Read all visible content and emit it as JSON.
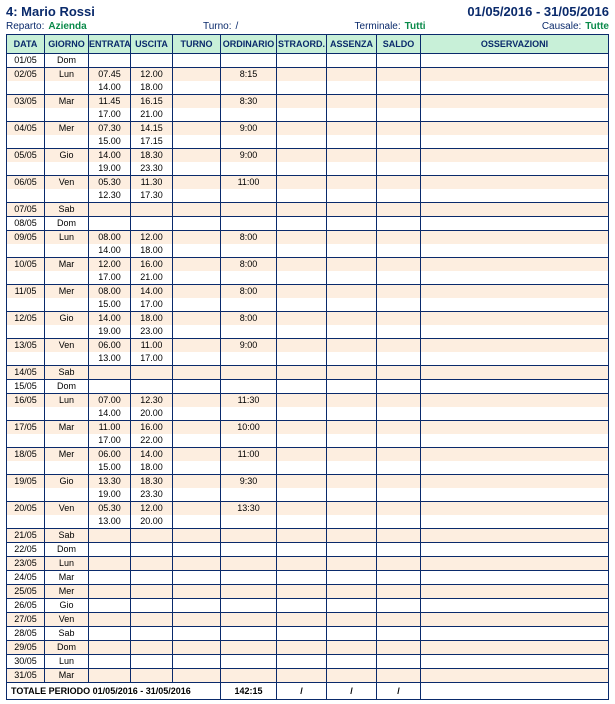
{
  "header": {
    "title_left": "4: Mario Rossi",
    "title_right": "01/05/2016 - 31/05/2016",
    "reparto_lbl": "Reparto:",
    "reparto_val": "Azienda",
    "turno_lbl": "Turno:",
    "turno_val": "/",
    "terminale_lbl": "Terminale:",
    "terminale_val": "Tutti",
    "causale_lbl": "Causale:",
    "causale_val": "Tutte"
  },
  "columns": {
    "data": "DATA",
    "giorno": "GIORNO",
    "entrata": "ENTRATA",
    "uscita": "USCITA",
    "turno": "TURNO",
    "ordinario": "ORDINARIO",
    "straord": "STRAORD.",
    "assenza": "ASSENZA",
    "saldo": "SALDO",
    "osserv": "OSSERVAZIONI"
  },
  "rows": [
    {
      "d": "01/05",
      "g": "Dom",
      "e": [],
      "u": [],
      "ord": ""
    },
    {
      "d": "02/05",
      "g": "Lun",
      "e": [
        "07.45",
        "14.00"
      ],
      "u": [
        "12.00",
        "18.00"
      ],
      "ord": "8:15"
    },
    {
      "d": "03/05",
      "g": "Mar",
      "e": [
        "11.45",
        "17.00"
      ],
      "u": [
        "16.15",
        "21.00"
      ],
      "ord": "8:30"
    },
    {
      "d": "04/05",
      "g": "Mer",
      "e": [
        "07.30",
        "15.00"
      ],
      "u": [
        "14.15",
        "17.15"
      ],
      "ord": "9:00"
    },
    {
      "d": "05/05",
      "g": "Gio",
      "e": [
        "14.00",
        "19.00"
      ],
      "u": [
        "18.30",
        "23.30"
      ],
      "ord": "9:00"
    },
    {
      "d": "06/05",
      "g": "Ven",
      "e": [
        "05.30",
        "12.30"
      ],
      "u": [
        "11.30",
        "17.30"
      ],
      "ord": "11:00"
    },
    {
      "d": "07/05",
      "g": "Sab",
      "e": [],
      "u": [],
      "ord": ""
    },
    {
      "d": "08/05",
      "g": "Dom",
      "e": [],
      "u": [],
      "ord": ""
    },
    {
      "d": "09/05",
      "g": "Lun",
      "e": [
        "08.00",
        "14.00"
      ],
      "u": [
        "12.00",
        "18.00"
      ],
      "ord": "8:00"
    },
    {
      "d": "10/05",
      "g": "Mar",
      "e": [
        "12.00",
        "17.00"
      ],
      "u": [
        "16.00",
        "21.00"
      ],
      "ord": "8:00"
    },
    {
      "d": "11/05",
      "g": "Mer",
      "e": [
        "08.00",
        "15.00"
      ],
      "u": [
        "14.00",
        "17.00"
      ],
      "ord": "8:00"
    },
    {
      "d": "12/05",
      "g": "Gio",
      "e": [
        "14.00",
        "19.00"
      ],
      "u": [
        "18.00",
        "23.00"
      ],
      "ord": "8:00"
    },
    {
      "d": "13/05",
      "g": "Ven",
      "e": [
        "06.00",
        "13.00"
      ],
      "u": [
        "11.00",
        "17.00"
      ],
      "ord": "9:00"
    },
    {
      "d": "14/05",
      "g": "Sab",
      "e": [],
      "u": [],
      "ord": ""
    },
    {
      "d": "15/05",
      "g": "Dom",
      "e": [],
      "u": [],
      "ord": ""
    },
    {
      "d": "16/05",
      "g": "Lun",
      "e": [
        "07.00",
        "14.00"
      ],
      "u": [
        "12.30",
        "20.00"
      ],
      "ord": "11:30"
    },
    {
      "d": "17/05",
      "g": "Mar",
      "e": [
        "11.00",
        "17.00"
      ],
      "u": [
        "16.00",
        "22.00"
      ],
      "ord": "10:00"
    },
    {
      "d": "18/05",
      "g": "Mer",
      "e": [
        "06.00",
        "15.00"
      ],
      "u": [
        "14.00",
        "18.00"
      ],
      "ord": "11:00"
    },
    {
      "d": "19/05",
      "g": "Gio",
      "e": [
        "13.30",
        "19.00"
      ],
      "u": [
        "18.30",
        "23.30"
      ],
      "ord": "9:30"
    },
    {
      "d": "20/05",
      "g": "Ven",
      "e": [
        "05.30",
        "13.00"
      ],
      "u": [
        "12.00",
        "20.00"
      ],
      "ord": "13:30"
    },
    {
      "d": "21/05",
      "g": "Sab",
      "e": [],
      "u": [],
      "ord": ""
    },
    {
      "d": "22/05",
      "g": "Dom",
      "e": [],
      "u": [],
      "ord": ""
    },
    {
      "d": "23/05",
      "g": "Lun",
      "e": [],
      "u": [],
      "ord": ""
    },
    {
      "d": "24/05",
      "g": "Mar",
      "e": [],
      "u": [],
      "ord": ""
    },
    {
      "d": "25/05",
      "g": "Mer",
      "e": [],
      "u": [],
      "ord": ""
    },
    {
      "d": "26/05",
      "g": "Gio",
      "e": [],
      "u": [],
      "ord": ""
    },
    {
      "d": "27/05",
      "g": "Ven",
      "e": [],
      "u": [],
      "ord": ""
    },
    {
      "d": "28/05",
      "g": "Sab",
      "e": [],
      "u": [],
      "ord": ""
    },
    {
      "d": "29/05",
      "g": "Dom",
      "e": [],
      "u": [],
      "ord": ""
    },
    {
      "d": "30/05",
      "g": "Lun",
      "e": [],
      "u": [],
      "ord": ""
    },
    {
      "d": "31/05",
      "g": "Mar",
      "e": [],
      "u": [],
      "ord": ""
    }
  ],
  "footer": {
    "label": "TOTALE PERIODO  01/05/2016  -  31/05/2016",
    "ordinario": "142:15",
    "straord": "/",
    "assenza": "/",
    "saldo": "/"
  },
  "style": {
    "accent": "#0a2a6b",
    "green": "#0a8a4a",
    "header_bg": "#c8f0d8",
    "band_odd": "#fdeee0",
    "band_even": "#ffffff"
  }
}
